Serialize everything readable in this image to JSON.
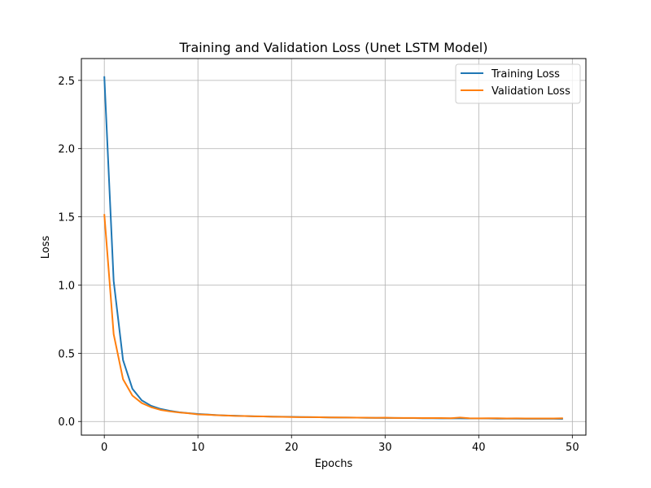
{
  "chart_data": {
    "type": "line",
    "title": "Training and Validation Loss (Unet LSTM Model)",
    "xlabel": "Epochs",
    "ylabel": "Loss",
    "xlim": [
      -2.45,
      51.45
    ],
    "ylim": [
      -0.1,
      2.66
    ],
    "xticks": [
      0,
      10,
      20,
      30,
      40,
      50
    ],
    "yticks": [
      0.0,
      0.5,
      1.0,
      1.5,
      2.0,
      2.5
    ],
    "xtick_labels": [
      "0",
      "10",
      "20",
      "30",
      "40",
      "50"
    ],
    "ytick_labels": [
      "0.0",
      "0.5",
      "1.0",
      "1.5",
      "2.0",
      "2.5"
    ],
    "grid": true,
    "legend_position": "upper right",
    "x": [
      0,
      1,
      2,
      3,
      4,
      5,
      6,
      7,
      8,
      9,
      10,
      11,
      12,
      13,
      14,
      15,
      16,
      17,
      18,
      19,
      20,
      21,
      22,
      23,
      24,
      25,
      26,
      27,
      28,
      29,
      30,
      31,
      32,
      33,
      34,
      35,
      36,
      37,
      38,
      39,
      40,
      41,
      42,
      43,
      44,
      45,
      46,
      47,
      48,
      49
    ],
    "series": [
      {
        "name": "Training Loss",
        "color": "#1f77b4",
        "values": [
          2.53,
          1.03,
          0.45,
          0.24,
          0.155,
          0.115,
          0.092,
          0.078,
          0.068,
          0.061,
          0.055,
          0.051,
          0.047,
          0.044,
          0.042,
          0.04,
          0.038,
          0.037,
          0.036,
          0.035,
          0.034,
          0.033,
          0.032,
          0.031,
          0.03,
          0.029,
          0.029,
          0.028,
          0.027,
          0.027,
          0.026,
          0.026,
          0.025,
          0.025,
          0.024,
          0.024,
          0.023,
          0.023,
          0.023,
          0.022,
          0.022,
          0.022,
          0.021,
          0.021,
          0.021,
          0.02,
          0.02,
          0.02,
          0.02,
          0.019
        ]
      },
      {
        "name": "Validation Loss",
        "color": "#ff7f0e",
        "values": [
          1.52,
          0.64,
          0.31,
          0.19,
          0.135,
          0.105,
          0.085,
          0.074,
          0.066,
          0.06,
          0.052,
          0.05,
          0.046,
          0.044,
          0.041,
          0.04,
          0.038,
          0.037,
          0.035,
          0.034,
          0.033,
          0.032,
          0.032,
          0.031,
          0.03,
          0.03,
          0.029,
          0.028,
          0.028,
          0.027,
          0.028,
          0.026,
          0.026,
          0.026,
          0.025,
          0.025,
          0.025,
          0.024,
          0.029,
          0.024,
          0.023,
          0.024,
          0.024,
          0.022,
          0.023,
          0.022,
          0.022,
          0.022,
          0.022,
          0.024
        ]
      }
    ]
  }
}
